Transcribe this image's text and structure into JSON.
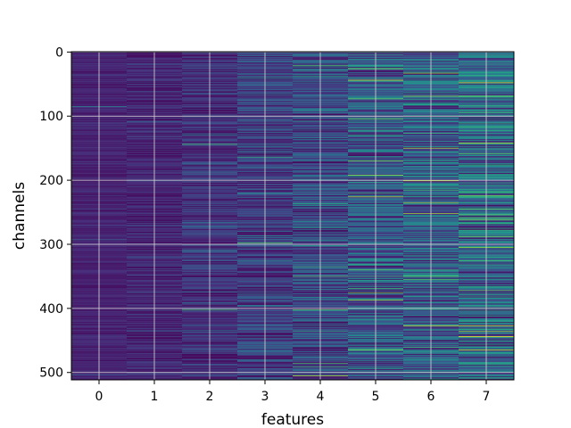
{
  "chart_data": {
    "type": "heatmap",
    "title": "",
    "xlabel": "features",
    "ylabel": "channels",
    "x_categories": [
      0,
      1,
      2,
      3,
      4,
      5,
      6,
      7
    ],
    "y_range": [
      0,
      511
    ],
    "y_ticks": [
      0,
      100,
      200,
      300,
      400,
      500
    ],
    "grid": true,
    "colormap": "viridis",
    "n_rows": 512,
    "column_brightness": [
      0.1,
      0.11,
      0.14,
      0.18,
      0.22,
      0.27,
      0.3,
      0.32
    ],
    "bright_lines": [
      {
        "feature": 0,
        "channel": 85,
        "value": 0.45
      },
      {
        "feature": 2,
        "channel": 144,
        "value": 0.7
      },
      {
        "feature": 2,
        "channel": 402,
        "value": 0.7
      },
      {
        "feature": 3,
        "channel": 40,
        "value": 0.55
      },
      {
        "feature": 3,
        "channel": 298,
        "value": 0.75
      },
      {
        "feature": 4,
        "channel": 108,
        "value": 0.55
      },
      {
        "feature": 4,
        "channel": 402,
        "value": 0.75
      },
      {
        "feature": 4,
        "channel": 505,
        "value": 0.9
      },
      {
        "feature": 5,
        "channel": 26,
        "value": 0.8
      },
      {
        "feature": 5,
        "channel": 44,
        "value": 0.95
      },
      {
        "feature": 5,
        "channel": 192,
        "value": 0.85
      },
      {
        "feature": 5,
        "channel": 226,
        "value": 0.9
      },
      {
        "feature": 5,
        "channel": 340,
        "value": 0.75
      },
      {
        "feature": 5,
        "channel": 465,
        "value": 0.8
      },
      {
        "feature": 6,
        "channel": 235,
        "value": 0.85
      },
      {
        "feature": 6,
        "channel": 400,
        "value": 0.8
      },
      {
        "feature": 6,
        "channel": 427,
        "value": 0.95
      },
      {
        "feature": 7,
        "channel": 48,
        "value": 0.95
      },
      {
        "feature": 7,
        "channel": 142,
        "value": 0.9
      },
      {
        "feature": 7,
        "channel": 262,
        "value": 0.8
      },
      {
        "feature": 7,
        "channel": 372,
        "value": 0.75
      },
      {
        "feature": 7,
        "channel": 436,
        "value": 0.85
      }
    ],
    "dark_lines": [
      {
        "feature": 5,
        "channel": 375,
        "value": 0.0
      },
      {
        "feature": 4,
        "channel": 135,
        "value": 0.02
      },
      {
        "feature": 6,
        "channel": 185,
        "value": 0.05
      }
    ]
  }
}
